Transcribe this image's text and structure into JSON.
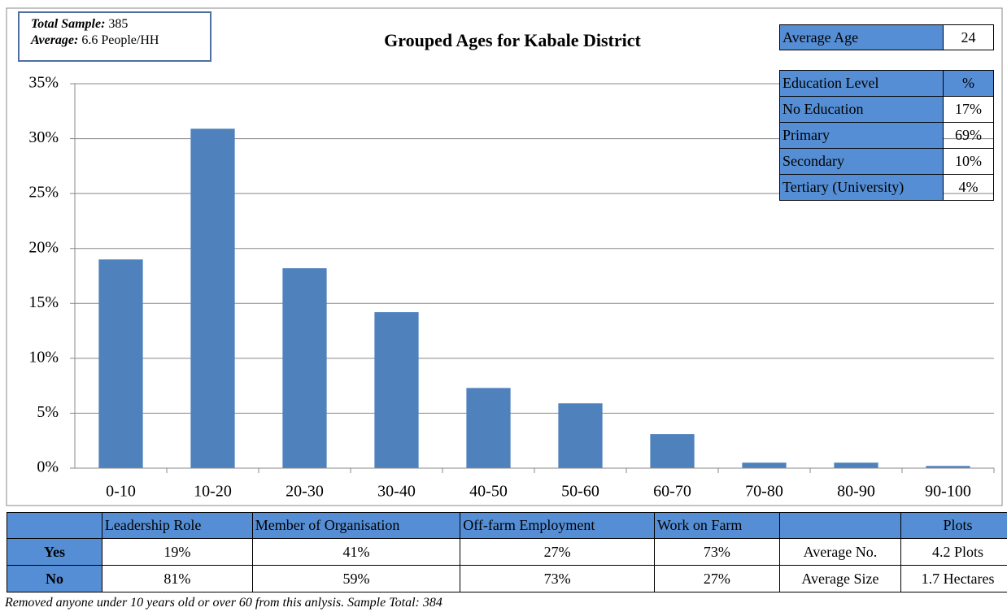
{
  "chart_data": {
    "type": "bar",
    "title": "Grouped Ages for Kabale District",
    "categories": [
      "0-10",
      "10-20",
      "20-30",
      "30-40",
      "40-50",
      "50-60",
      "60-70",
      "70-80",
      "80-90",
      "90-100"
    ],
    "values": [
      19,
      30.9,
      18.2,
      14.2,
      7.3,
      5.9,
      3.1,
      0.5,
      0.5,
      0.2
    ],
    "color": "#4f81bd",
    "ylim": [
      0,
      35
    ],
    "yticks": [
      {
        "value": 0,
        "label": "0%"
      },
      {
        "value": 5,
        "label": "5%"
      },
      {
        "value": 10,
        "label": "10%"
      },
      {
        "value": 15,
        "label": "15%"
      },
      {
        "value": 20,
        "label": "20%"
      },
      {
        "value": 25,
        "label": "25%"
      },
      {
        "value": 30,
        "label": "30%"
      },
      {
        "value": 35,
        "label": "35%"
      }
    ],
    "grid": true
  },
  "info_box": {
    "sample_label": "Total Sample:",
    "sample_value": "385",
    "average_label": "Average:",
    "average_value": "6.6 People/HH"
  },
  "average_age": {
    "label": "Average Age",
    "value": "24"
  },
  "education_table": {
    "header": [
      "Education Level",
      "%"
    ],
    "rows": [
      [
        "No Education",
        "17%"
      ],
      [
        "Primary",
        "69%"
      ],
      [
        "Secondary",
        "10%"
      ],
      [
        "Tertiary (University)",
        "4%"
      ]
    ]
  },
  "bottom_table": {
    "columns": [
      "Leadership Role",
      "Member of Organisation",
      "Off-farm Employment",
      "Work on Farm"
    ],
    "plots_header": "Plots",
    "rows": [
      {
        "label": "Yes",
        "values": [
          "19%",
          "41%",
          "27%",
          "73%"
        ],
        "stat_label": "Average No.",
        "stat_value": "4.2 Plots"
      },
      {
        "label": "No",
        "values": [
          "81%",
          "59%",
          "73%",
          "27%"
        ],
        "stat_label": "Average Size",
        "stat_value": "1.7 Hectares"
      }
    ]
  },
  "footnote": "Removed anyone under 10 years old or over 60 from this anlysis. Sample Total: 384"
}
